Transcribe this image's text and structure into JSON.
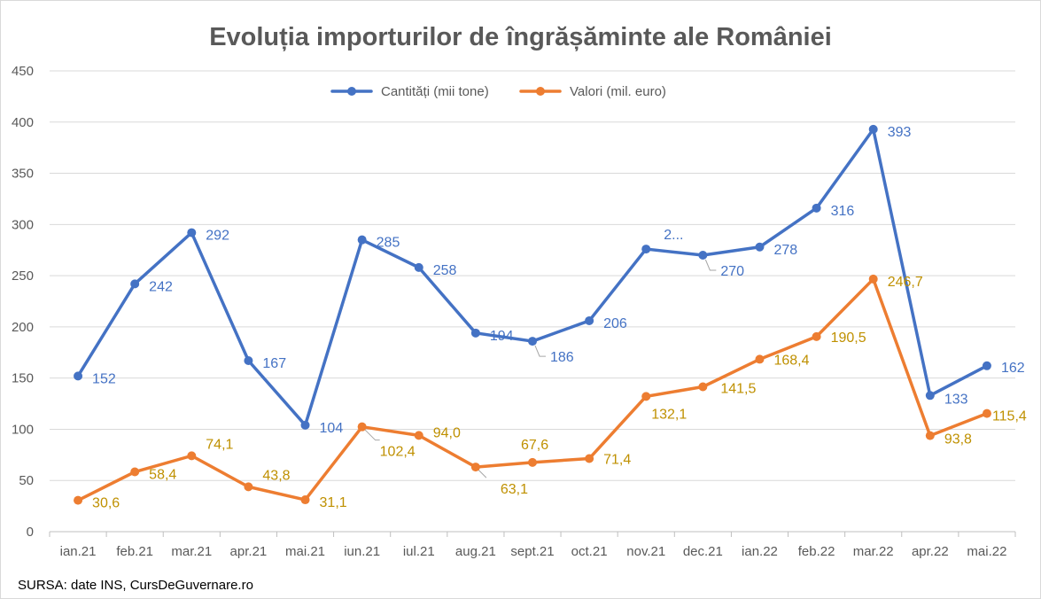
{
  "chart_data": {
    "type": "line",
    "title": "Evoluția importurilor de îngrășăminte ale României",
    "categories": [
      "ian.21",
      "feb.21",
      "mar.21",
      "apr.21",
      "mai.21",
      "iun.21",
      "iul.21",
      "aug.21",
      "sept.21",
      "oct.21",
      "nov.21",
      "dec.21",
      "ian.22",
      "feb.22",
      "mar.22",
      "apr.22",
      "mai.22"
    ],
    "ylim": [
      0,
      450
    ],
    "yticks": [
      0,
      50,
      100,
      150,
      200,
      250,
      300,
      350,
      400,
      450
    ],
    "grid": true,
    "legend_position": "top",
    "series": [
      {
        "name": "Cantități (mii tone)",
        "color": "#4472c4",
        "label_color": "#4472c4",
        "values": [
          152,
          242,
          292,
          167,
          104,
          285,
          258,
          194,
          186,
          206,
          276,
          270,
          278,
          316,
          393,
          133,
          162
        ],
        "labels": [
          "152",
          "242",
          "292",
          "167",
          "104",
          "285",
          "258",
          "194",
          "186",
          "206",
          "2...",
          "270",
          "278",
          "316",
          "393",
          "133",
          "162"
        ]
      },
      {
        "name": "Valori (mil. euro)",
        "color": "#ed7d31",
        "label_color": "#bf9000",
        "values": [
          30.6,
          58.4,
          74.1,
          43.8,
          31.1,
          102.4,
          94.0,
          63.1,
          67.6,
          71.4,
          132.1,
          141.5,
          168.4,
          190.5,
          246.7,
          93.8,
          115.4
        ],
        "labels": [
          "30,6",
          "58,4",
          "74,1",
          "43,8",
          "31,1",
          "102,4",
          "94,0",
          "63,1",
          "67,6",
          "71,4",
          "132,1",
          "141,5",
          "168,4",
          "190,5",
          "246,7",
          "93,8",
          "115,4"
        ]
      }
    ]
  },
  "source": "SURSA: date INS, CursDeGuvernare.ro"
}
